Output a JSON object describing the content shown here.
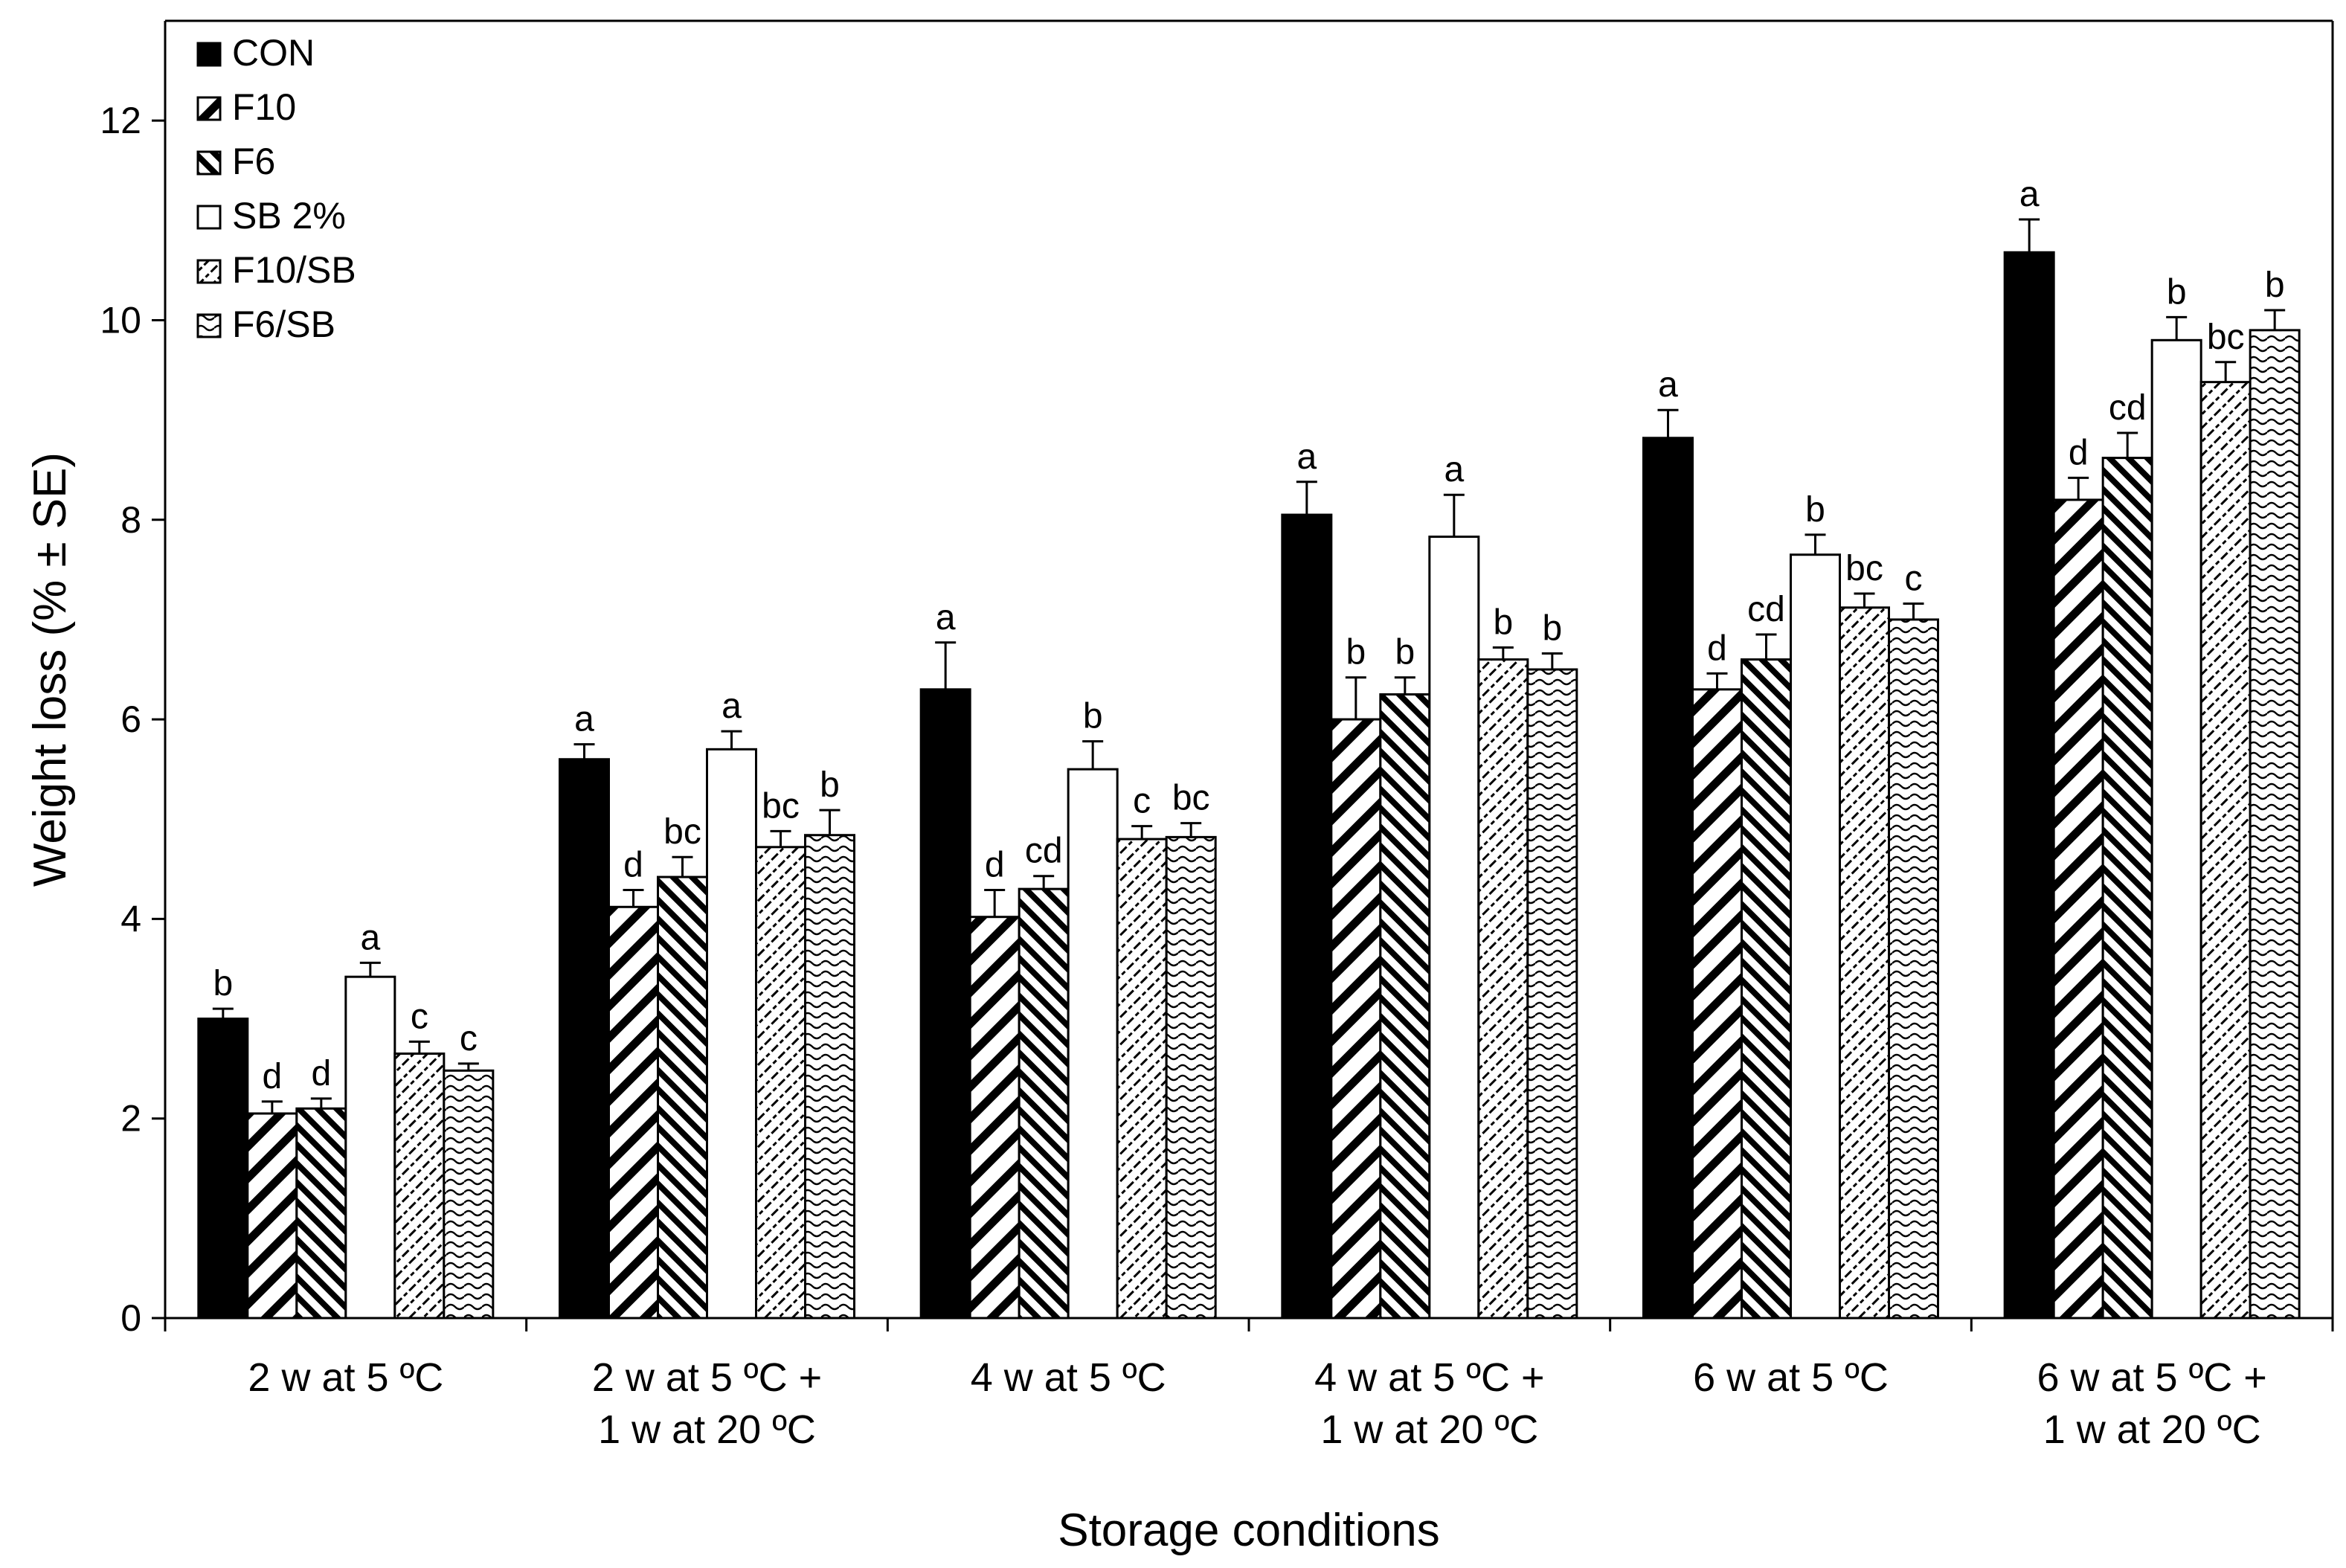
{
  "chart_data": {
    "type": "bar",
    "title": "",
    "xlabel": "Storage conditions",
    "ylabel": "Weight loss (% ± SE)",
    "ylim": [
      0,
      13
    ],
    "yticks": [
      0,
      2,
      4,
      6,
      8,
      10,
      12
    ],
    "categories": [
      [
        "2 w at 5 ºC"
      ],
      [
        "2 w at 5 ºC +",
        "1 w at 20 ºC"
      ],
      [
        "4 w at 5 ºC"
      ],
      [
        "4 w at 5 ºC +",
        "1 w at 20 ºC"
      ],
      [
        "6 w at 5 ºC"
      ],
      [
        "6 w at 5 ºC +",
        "1 w at 20 ºC"
      ]
    ],
    "series": [
      {
        "name": "CON",
        "pattern": "solid-black",
        "values": [
          3.0,
          5.6,
          6.3,
          8.05,
          8.82,
          10.68
        ],
        "errors": [
          0.1,
          0.15,
          0.47,
          0.33,
          0.28,
          0.33
        ],
        "letters": [
          "b",
          "a",
          "a",
          "a",
          "a",
          "a"
        ]
      },
      {
        "name": "F10",
        "pattern": "wide-diagonal",
        "values": [
          2.05,
          4.12,
          4.02,
          6.0,
          6.3,
          8.2
        ],
        "errors": [
          0.12,
          0.17,
          0.27,
          0.42,
          0.16,
          0.22
        ],
        "letters": [
          "d",
          "d",
          "d",
          "b",
          "d",
          "d"
        ]
      },
      {
        "name": "F6",
        "pattern": "narrow-diagonal",
        "values": [
          2.1,
          4.42,
          4.3,
          6.25,
          6.6,
          8.62
        ],
        "errors": [
          0.1,
          0.2,
          0.13,
          0.17,
          0.25,
          0.25
        ],
        "letters": [
          "d",
          "bc",
          "cd",
          "b",
          "cd",
          "cd"
        ]
      },
      {
        "name": "SB 2%",
        "pattern": "white",
        "values": [
          3.42,
          5.7,
          5.5,
          7.83,
          7.65,
          9.8
        ],
        "errors": [
          0.14,
          0.18,
          0.28,
          0.42,
          0.2,
          0.23
        ],
        "letters": [
          "a",
          "a",
          "b",
          "a",
          "b",
          "b"
        ]
      },
      {
        "name": "F10/SB",
        "pattern": "dashed-diagonal",
        "values": [
          2.65,
          4.72,
          4.8,
          6.6,
          7.12,
          9.38
        ],
        "errors": [
          0.12,
          0.16,
          0.13,
          0.12,
          0.14,
          0.2
        ],
        "letters": [
          "c",
          "bc",
          "c",
          "b",
          "bc",
          "bc"
        ]
      },
      {
        "name": "F6/SB",
        "pattern": "wavy",
        "values": [
          2.48,
          4.84,
          4.82,
          6.5,
          7.0,
          9.9
        ],
        "errors": [
          0.07,
          0.25,
          0.14,
          0.16,
          0.16,
          0.2
        ],
        "letters": [
          "c",
          "b",
          "bc",
          "b",
          "c",
          "b"
        ]
      }
    ]
  }
}
